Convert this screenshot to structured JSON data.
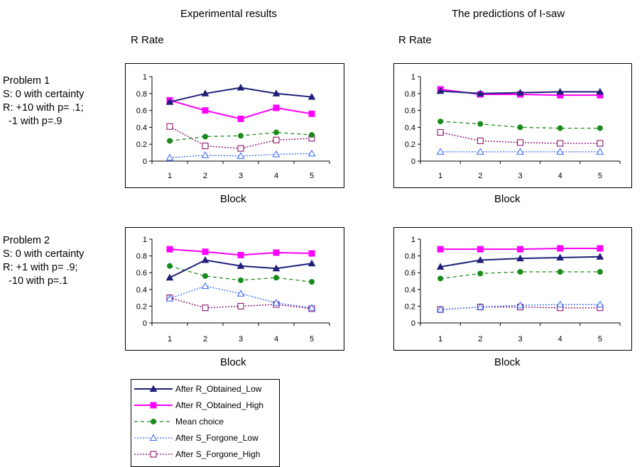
{
  "columns": {
    "left_title": "Experimental results",
    "right_title": "The predictions of I-saw"
  },
  "ylabel": "R Rate",
  "xlabel": "Block",
  "problems": [
    {
      "lines": [
        "Problem 1",
        "S: 0 with certainty",
        "R: +10 with p= .1;",
        "  -1 with p=.9"
      ]
    },
    {
      "lines": [
        "Problem 2",
        "S: 0 with certainty",
        "R: +1 with p= .9;",
        "  -10 with p=.1"
      ]
    }
  ],
  "legend": [
    {
      "name": "After R_Obtained_Low",
      "color": "#1f1f7a",
      "marker": "triangle-filled",
      "dash": "solid"
    },
    {
      "name": "After R_Obtained_High",
      "color": "#ff00ff",
      "marker": "square-filled",
      "dash": "solid"
    },
    {
      "name": "Mean choice",
      "color": "#1a8a1a",
      "marker": "circle-filled",
      "dash": "dashed"
    },
    {
      "name": "After S_Forgone_Low",
      "color": "#3366ff",
      "marker": "triangle-open",
      "dash": "dotted"
    },
    {
      "name": "After S_Forgone_High",
      "color": "#800060",
      "marker": "square-open",
      "dash": "dotted"
    }
  ],
  "chart_data": [
    {
      "type": "line",
      "title": "Experimental results",
      "row_label": "Problem 1",
      "xlabel": "Block",
      "ylabel": "R Rate",
      "x": [
        1,
        2,
        3,
        4,
        5
      ],
      "ylim": [
        0,
        1
      ],
      "yticks": [
        "0",
        "0.2",
        "0.4",
        "0.6",
        "0.8",
        "1"
      ],
      "series": [
        {
          "name": "After R_Obtained_Low",
          "values": [
            0.7,
            0.8,
            0.87,
            0.8,
            0.76
          ]
        },
        {
          "name": "After R_Obtained_High",
          "values": [
            0.72,
            0.6,
            0.5,
            0.63,
            0.56
          ]
        },
        {
          "name": "Mean choice",
          "values": [
            0.24,
            0.29,
            0.3,
            0.34,
            0.31
          ]
        },
        {
          "name": "After S_Forgone_Low",
          "values": [
            0.04,
            0.07,
            0.06,
            0.08,
            0.09
          ]
        },
        {
          "name": "After S_Forgone_High",
          "values": [
            0.41,
            0.18,
            0.15,
            0.25,
            0.27
          ]
        }
      ]
    },
    {
      "type": "line",
      "title": "The predictions of I-saw",
      "row_label": "Problem 1",
      "xlabel": "Block",
      "ylabel": "R Rate",
      "x": [
        1,
        2,
        3,
        4,
        5
      ],
      "ylim": [
        0,
        1
      ],
      "yticks": [
        "0",
        "0.2",
        "0.4",
        "0.6",
        "0.8",
        "1"
      ],
      "series": [
        {
          "name": "After R_Obtained_Low",
          "values": [
            0.83,
            0.8,
            0.81,
            0.82,
            0.82
          ]
        },
        {
          "name": "After R_Obtained_High",
          "values": [
            0.85,
            0.79,
            0.79,
            0.78,
            0.78
          ]
        },
        {
          "name": "Mean choice",
          "values": [
            0.47,
            0.44,
            0.4,
            0.39,
            0.39
          ]
        },
        {
          "name": "After S_Forgone_Low",
          "values": [
            0.11,
            0.11,
            0.11,
            0.11,
            0.11
          ]
        },
        {
          "name": "After S_Forgone_High",
          "values": [
            0.34,
            0.24,
            0.22,
            0.21,
            0.21
          ]
        }
      ]
    },
    {
      "type": "line",
      "title": "Experimental results",
      "row_label": "Problem 2",
      "xlabel": "Block",
      "ylabel": "R Rate",
      "x": [
        1,
        2,
        3,
        4,
        5
      ],
      "ylim": [
        0,
        1
      ],
      "yticks": [
        "0",
        "0.2",
        "0.4",
        "0.6",
        "0.8",
        "1"
      ],
      "series": [
        {
          "name": "After R_Obtained_Low",
          "values": [
            0.54,
            0.75,
            0.68,
            0.65,
            0.71
          ]
        },
        {
          "name": "After R_Obtained_High",
          "values": [
            0.88,
            0.85,
            0.81,
            0.84,
            0.83
          ]
        },
        {
          "name": "Mean choice",
          "values": [
            0.68,
            0.56,
            0.51,
            0.54,
            0.49
          ]
        },
        {
          "name": "After S_Forgone_Low",
          "values": [
            0.29,
            0.44,
            0.35,
            0.24,
            0.18
          ]
        },
        {
          "name": "After S_Forgone_High",
          "values": [
            0.3,
            0.18,
            0.2,
            0.22,
            0.17
          ]
        }
      ]
    },
    {
      "type": "line",
      "title": "The predictions of I-saw",
      "row_label": "Problem 2",
      "xlabel": "Block",
      "ylabel": "",
      "x": [
        1,
        2,
        3,
        4,
        5
      ],
      "ylim": [
        0,
        1
      ],
      "yticks": [
        "0",
        "0.2",
        "0.4",
        "0.6",
        "0.8",
        "1"
      ],
      "series": [
        {
          "name": "After R_Obtained_Low",
          "values": [
            0.67,
            0.75,
            0.77,
            0.78,
            0.79
          ]
        },
        {
          "name": "After R_Obtained_High",
          "values": [
            0.88,
            0.88,
            0.88,
            0.89,
            0.89
          ]
        },
        {
          "name": "Mean choice",
          "values": [
            0.53,
            0.59,
            0.61,
            0.61,
            0.61
          ]
        },
        {
          "name": "After S_Forgone_Low",
          "values": [
            0.16,
            0.19,
            0.21,
            0.22,
            0.22
          ]
        },
        {
          "name": "After S_Forgone_High",
          "values": [
            0.16,
            0.19,
            0.19,
            0.18,
            0.18
          ]
        }
      ]
    }
  ]
}
